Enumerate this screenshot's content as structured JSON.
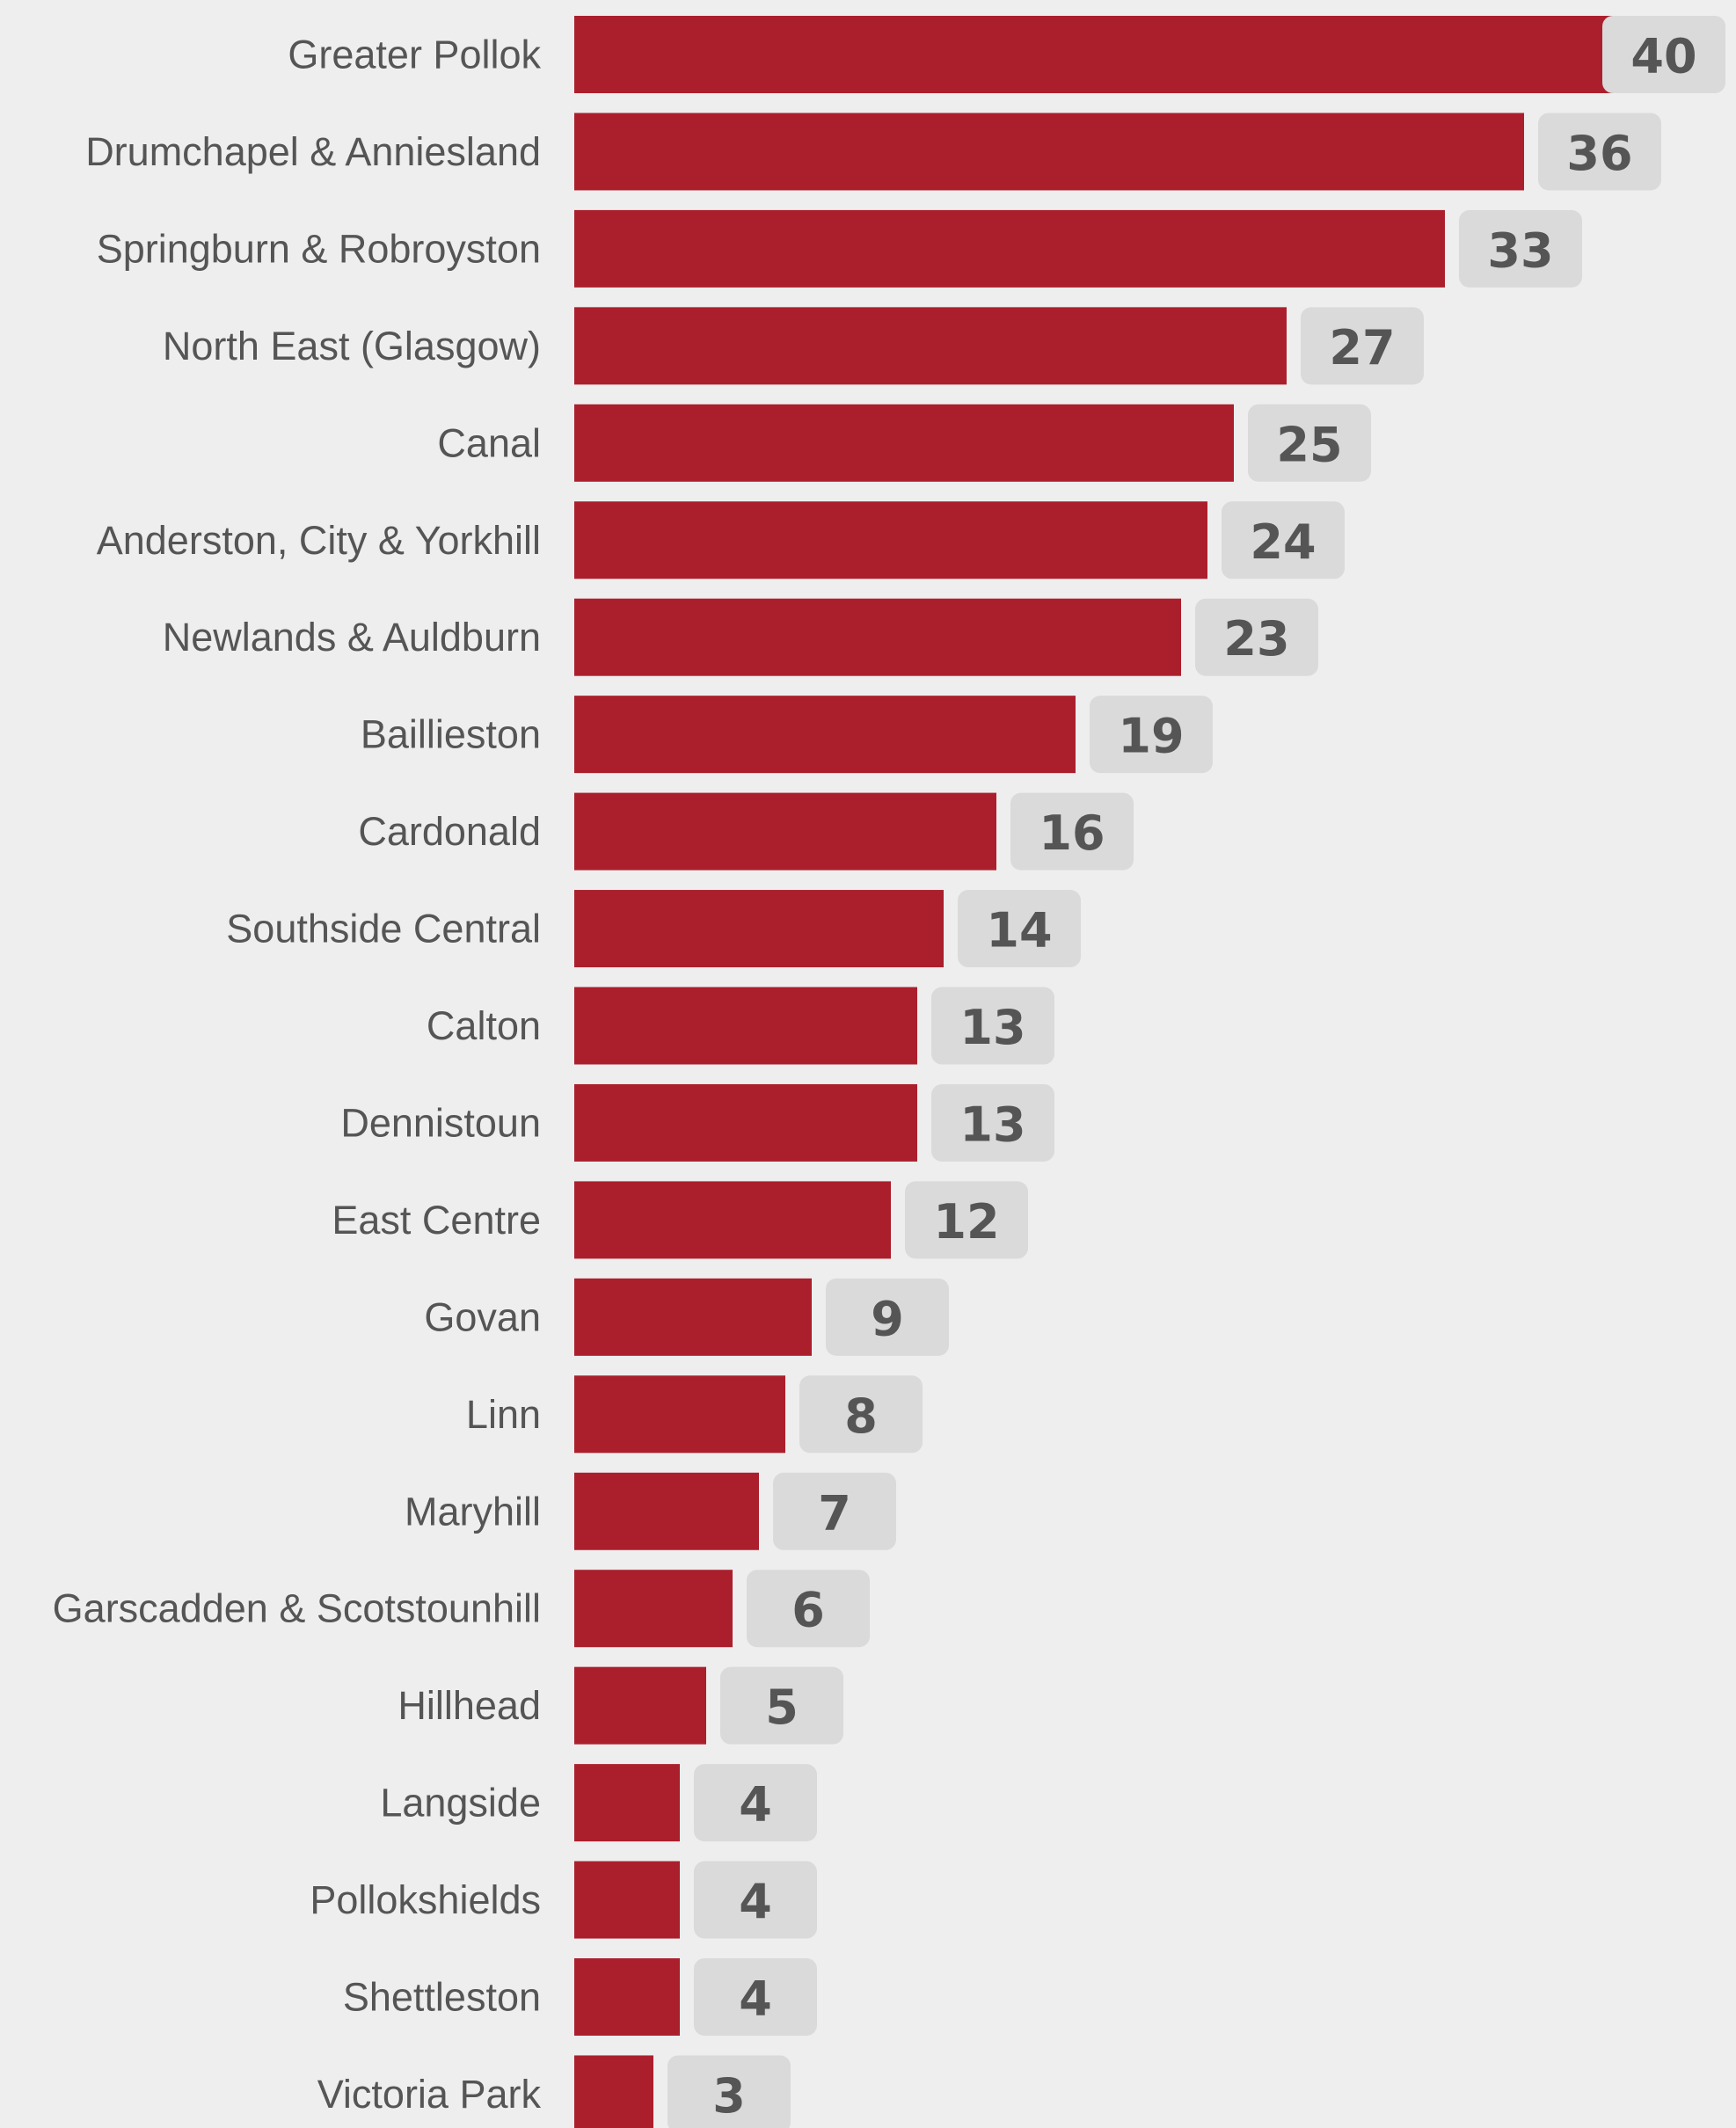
{
  "chart_data": {
    "type": "bar",
    "orientation": "horizontal",
    "title": "",
    "xlabel": "",
    "ylabel": "",
    "xlim": [
      0,
      40
    ],
    "grid": false,
    "legend": "none",
    "categories": [
      "Greater Pollok",
      "Drumchapel & Anniesland",
      "Springburn & Robroyston",
      "North East (Glasgow)",
      "Canal",
      "Anderston, City & Yorkhill",
      "Newlands & Auldburn",
      "Baillieston",
      "Cardonald",
      "Southside Central",
      "Calton",
      "Dennistoun",
      "East Centre",
      "Govan",
      "Linn",
      "Maryhill",
      "Garscadden & Scotstounhill",
      "Hillhead",
      "Langside",
      "Pollokshields",
      "Shettleston",
      "Victoria Park"
    ],
    "values": [
      40,
      36,
      33,
      27,
      25,
      24,
      23,
      19,
      16,
      14,
      13,
      13,
      12,
      9,
      8,
      7,
      6,
      5,
      4,
      4,
      4,
      3
    ],
    "colors": {
      "bar": "#ab1f2d",
      "label_box": "#dadada",
      "text": "#555555",
      "background": "#eeeeee"
    }
  }
}
